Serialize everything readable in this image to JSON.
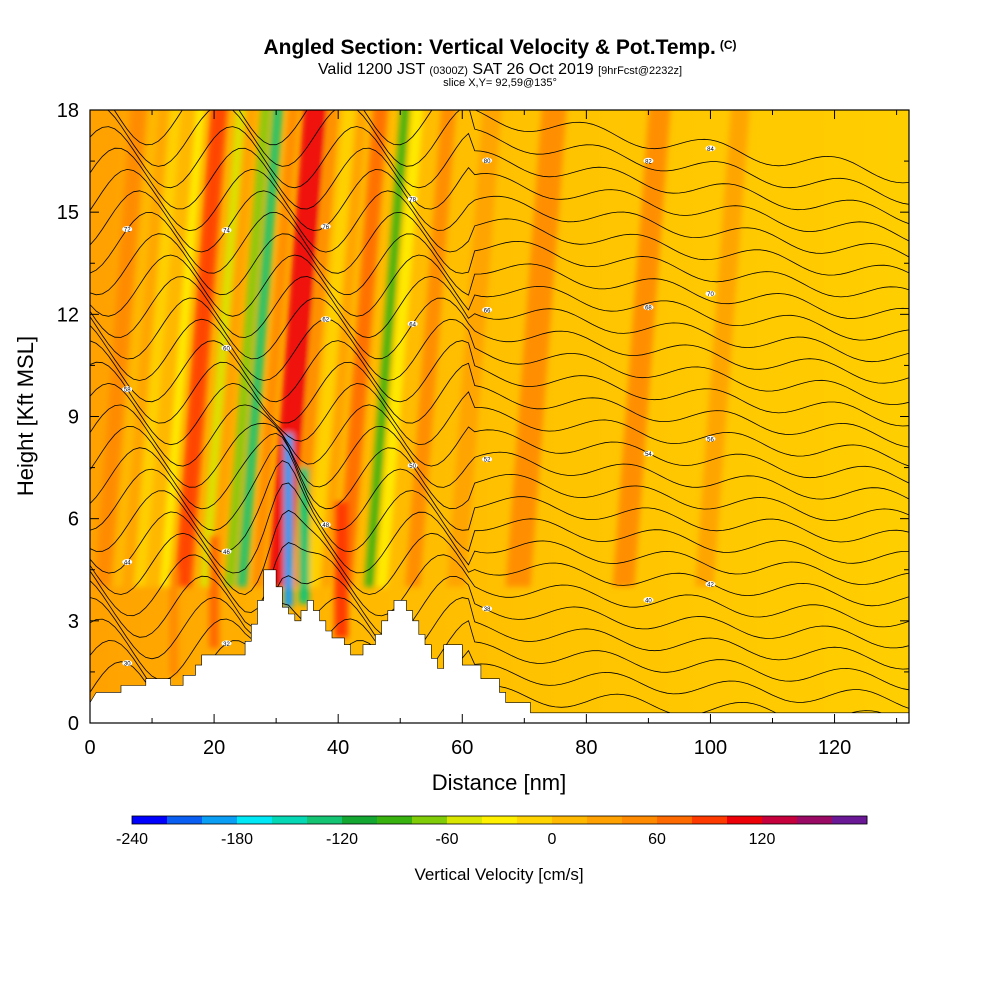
{
  "header": {
    "title": "Angled Section: Vertical Velocity & Pot.Temp.",
    "title_suffix": "(C)",
    "valid_prefix": "Valid 1200 JST",
    "valid_zulu": "(0300Z)",
    "valid_date": "SAT 26 Oct 2019",
    "valid_fcst": "[9hrFcst@2232z]",
    "slice": "slice X,Y= 92,59@135°"
  },
  "chart_data": {
    "type": "heatmap",
    "xlabel": "Distance [nm]",
    "ylabel": "Height [Kft MSL]",
    "xlim": [
      0,
      132
    ],
    "ylim": [
      0,
      18
    ],
    "x_ticks": [
      "0",
      "20",
      "40",
      "60",
      "80",
      "100",
      "120"
    ],
    "y_ticks": [
      "0",
      "3",
      "6",
      "9",
      "12",
      "15",
      "18"
    ],
    "x_tick_values": [
      0,
      20,
      40,
      60,
      80,
      100,
      120
    ],
    "y_tick_values": [
      0,
      3,
      6,
      9,
      12,
      15,
      18
    ],
    "terrain_kft": [
      [
        0,
        0.6
      ],
      [
        1,
        0.9
      ],
      [
        5,
        0.9
      ],
      [
        5,
        1.1
      ],
      [
        9,
        1.1
      ],
      [
        9,
        1.3
      ],
      [
        13,
        1.3
      ],
      [
        13,
        1.1
      ],
      [
        15,
        1.1
      ],
      [
        15,
        1.4
      ],
      [
        17,
        1.4
      ],
      [
        17,
        1.7
      ],
      [
        18,
        1.7
      ],
      [
        18,
        2.0
      ],
      [
        25,
        2.0
      ],
      [
        25,
        2.4
      ],
      [
        26,
        2.4
      ],
      [
        26,
        2.9
      ],
      [
        27,
        2.9
      ],
      [
        27,
        3.6
      ],
      [
        28,
        3.6
      ],
      [
        28,
        4.5
      ],
      [
        30,
        4.5
      ],
      [
        30,
        4.0
      ],
      [
        31,
        4.0
      ],
      [
        31,
        3.4
      ],
      [
        32,
        3.4
      ],
      [
        32,
        3.2
      ],
      [
        33,
        3.2
      ],
      [
        33,
        3.0
      ],
      [
        34,
        3.0
      ],
      [
        34,
        3.3
      ],
      [
        35,
        3.3
      ],
      [
        35,
        3.6
      ],
      [
        36,
        3.6
      ],
      [
        36,
        3.3
      ],
      [
        37,
        3.3
      ],
      [
        37,
        3.0
      ],
      [
        38,
        3.0
      ],
      [
        38,
        2.7
      ],
      [
        39,
        2.7
      ],
      [
        39,
        2.5
      ],
      [
        41,
        2.5
      ],
      [
        41,
        2.3
      ],
      [
        42,
        2.3
      ],
      [
        42,
        2.0
      ],
      [
        44,
        2.0
      ],
      [
        44,
        2.3
      ],
      [
        46,
        2.3
      ],
      [
        46,
        2.6
      ],
      [
        47,
        2.6
      ],
      [
        47,
        3.0
      ],
      [
        48,
        3.0
      ],
      [
        48,
        3.3
      ],
      [
        49,
        3.3
      ],
      [
        49,
        3.6
      ],
      [
        51,
        3.6
      ],
      [
        51,
        3.3
      ],
      [
        52,
        3.3
      ],
      [
        52,
        3.0
      ],
      [
        53,
        3.0
      ],
      [
        53,
        2.6
      ],
      [
        54,
        2.6
      ],
      [
        54,
        2.3
      ],
      [
        55,
        2.3
      ],
      [
        55,
        1.9
      ],
      [
        56,
        1.9
      ],
      [
        56,
        1.6
      ],
      [
        57,
        1.6
      ],
      [
        57,
        2.3
      ],
      [
        60,
        2.3
      ],
      [
        60,
        1.7
      ],
      [
        63,
        1.7
      ],
      [
        63,
        1.3
      ],
      [
        66,
        1.3
      ],
      [
        66,
        0.9
      ],
      [
        67,
        0.9
      ],
      [
        67,
        0.6
      ],
      [
        71,
        0.6
      ],
      [
        71,
        0.3
      ],
      [
        132,
        0.3
      ]
    ],
    "colorbar": {
      "title": "Vertical Velocity [cm/s]",
      "labels": [
        "-240",
        "-180",
        "-120",
        "-60",
        "0",
        "60",
        "120"
      ],
      "label_values": [
        -240,
        -180,
        -120,
        -60,
        0,
        60,
        120
      ],
      "min": -240,
      "step": 20,
      "colors": [
        "#0000ff",
        "#0a5ff2",
        "#0a9ef5",
        "#00e8f5",
        "#05d8b4",
        "#14c472",
        "#14a832",
        "#37b20f",
        "#80cc08",
        "#d8e600",
        "#fff000",
        "#ffd400",
        "#ffba00",
        "#ffa100",
        "#ff8a00",
        "#ff6a00",
        "#ff3a00",
        "#ee0008",
        "#c5003c",
        "#9a0a64",
        "#6a1896"
      ]
    },
    "isentrope_labels": [
      "30",
      "32",
      "34",
      "36",
      "38",
      "40",
      "42",
      "44",
      "46",
      "48",
      "50",
      "52",
      "54",
      "56",
      "58",
      "60",
      "62",
      "64",
      "66",
      "68",
      "70",
      "72",
      "74",
      "76",
      "78",
      "80",
      "82",
      "84"
    ],
    "grid": false,
    "legend": "colorbar-bottom"
  }
}
